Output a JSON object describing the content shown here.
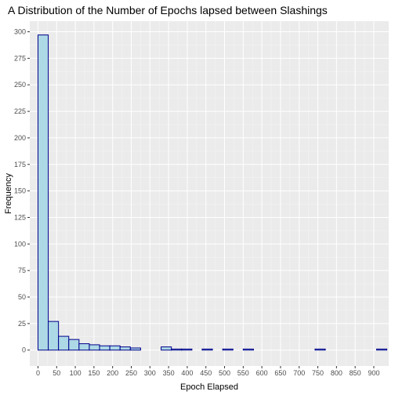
{
  "chart_data": {
    "type": "bar",
    "title": "A Distribution of the Number of Epochs lapsed between Slashings",
    "xlabel": "Epoch Elapsed",
    "ylabel": "Frequency",
    "bin_width": 27.5,
    "x_bin_start": 0,
    "xlim": [
      -22,
      940
    ],
    "ylim": [
      -15,
      310
    ],
    "x_ticks": [
      0,
      50,
      100,
      150,
      200,
      250,
      300,
      350,
      400,
      450,
      500,
      550,
      600,
      650,
      700,
      750,
      800,
      850,
      900
    ],
    "y_ticks": [
      0,
      25,
      50,
      75,
      100,
      125,
      150,
      175,
      200,
      225,
      250,
      275,
      300
    ],
    "grid": true,
    "bars": [
      297,
      27,
      13,
      10,
      6,
      5,
      4,
      4,
      3,
      2,
      0,
      0,
      3,
      1,
      1,
      0,
      1,
      0,
      1,
      0,
      1,
      0,
      0,
      0,
      0,
      0,
      0,
      1,
      0,
      0,
      0,
      0,
      0,
      1
    ],
    "colors": {
      "panel": "#EBEBEB",
      "grid_major": "#FFFFFF",
      "grid_minor": "#F5F5F5",
      "bar_fill": "#ADD8E6",
      "bar_stroke": "#00008B",
      "tick_text": "#4D4D4D"
    }
  }
}
